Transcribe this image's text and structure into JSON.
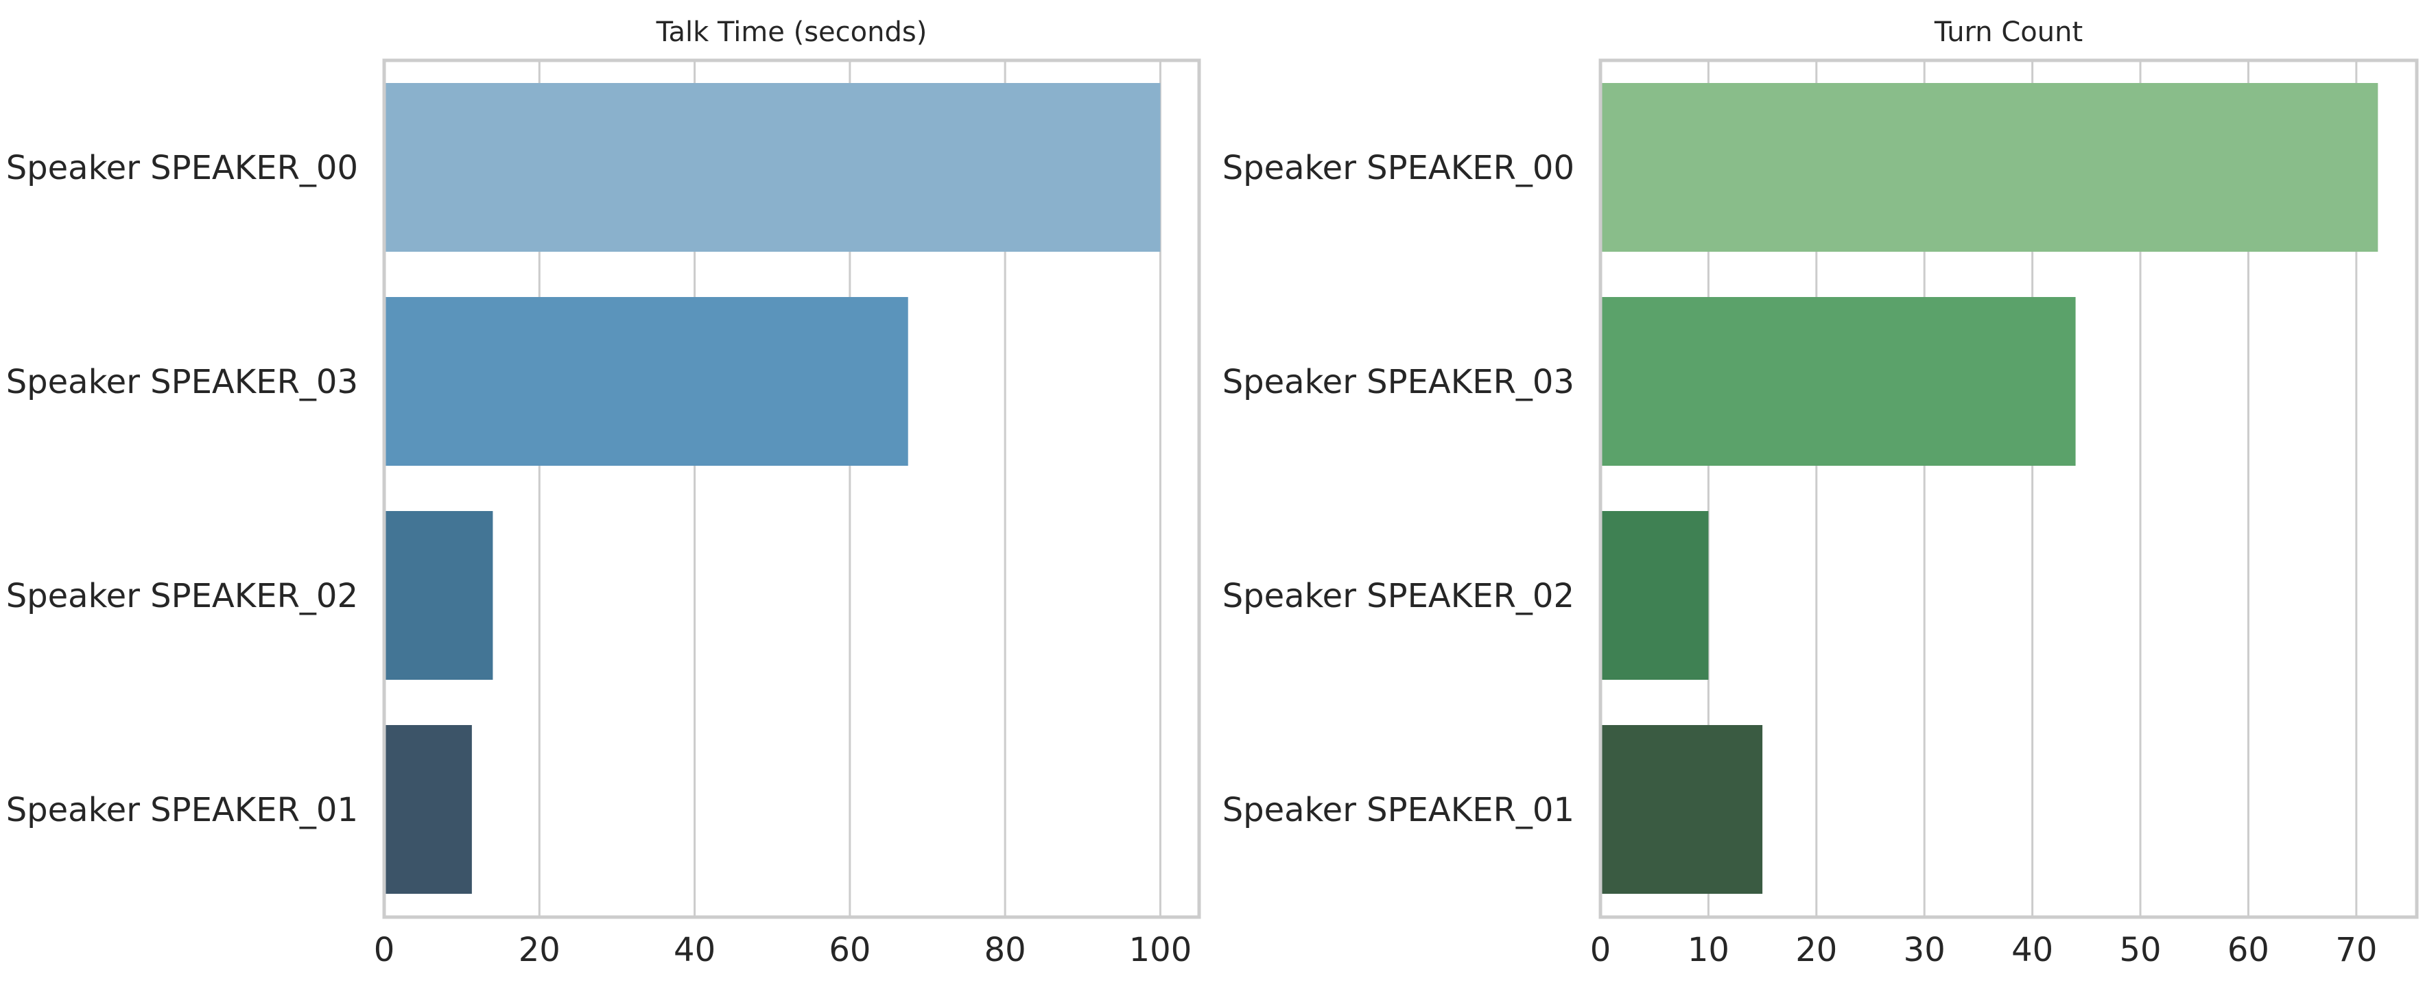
{
  "chart_data": [
    {
      "type": "bar",
      "orientation": "horizontal",
      "title": "Talk Time (seconds)",
      "xlabel": "",
      "ylabel": "",
      "categories": [
        "Speaker SPEAKER_00",
        "Speaker SPEAKER_03",
        "Speaker SPEAKER_02",
        "Speaker SPEAKER_01"
      ],
      "values": [
        100,
        67.5,
        14,
        11.3
      ],
      "bar_colors": [
        "#8ab1cc",
        "#5b94bb",
        "#437595",
        "#3c5468"
      ],
      "xlim": [
        0,
        105
      ],
      "xticks": [
        0,
        20,
        40,
        60,
        80,
        100
      ],
      "grid": "vertical",
      "legend": "none"
    },
    {
      "type": "bar",
      "orientation": "horizontal",
      "title": "Turn Count",
      "xlabel": "",
      "ylabel": "",
      "categories": [
        "Speaker SPEAKER_00",
        "Speaker SPEAKER_03",
        "Speaker SPEAKER_02",
        "Speaker SPEAKER_01"
      ],
      "values": [
        72,
        44,
        10,
        15
      ],
      "bar_colors": [
        "#89bd8a",
        "#5ba26a",
        "#3f8153",
        "#3a5b42"
      ],
      "xlim": [
        0,
        75.6
      ],
      "xticks": [
        0,
        10,
        20,
        30,
        40,
        50,
        60,
        70
      ],
      "grid": "vertical",
      "legend": "none"
    }
  ]
}
